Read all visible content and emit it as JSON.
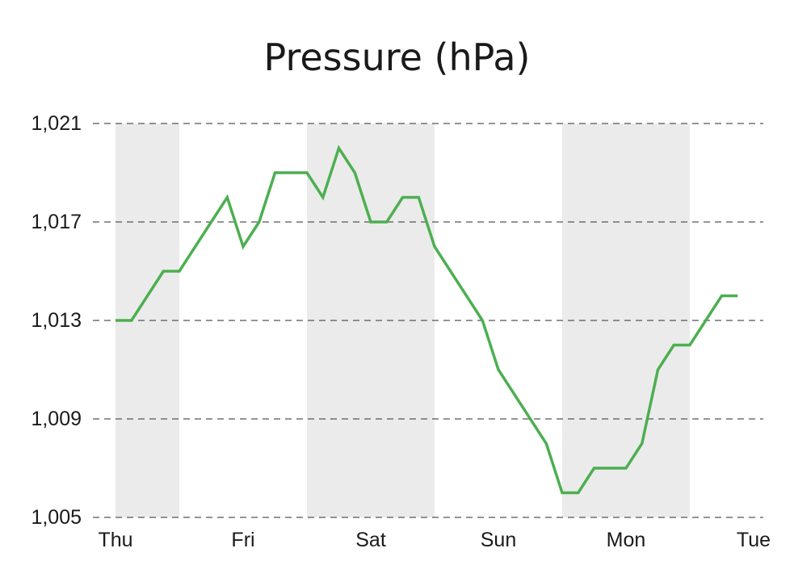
{
  "chart_data": {
    "type": "line",
    "title": "Pressure (hPa)",
    "xlabel": "",
    "ylabel": "",
    "x_tick_labels": [
      "Thu",
      "Fri",
      "Sat",
      "Sun",
      "Mon",
      "Tue"
    ],
    "y_tick_labels": [
      "1,021",
      "1,017",
      "1,013",
      "1,009",
      "1,005"
    ],
    "y_ticks": [
      1021,
      1017,
      1013,
      1009,
      1005
    ],
    "ylim": [
      1005,
      1021
    ],
    "xlim_days": [
      0,
      5
    ],
    "grid": "horizontal dashed",
    "shaded_bands": [
      {
        "from_day": 0,
        "to_day": 0.5
      },
      {
        "from_day": 1.5,
        "to_day": 2.5
      },
      {
        "from_day": 3.5,
        "to_day": 4.5
      }
    ],
    "line_color": "#4caf50",
    "band_color": "#ebebeb",
    "series": [
      {
        "name": "",
        "points": [
          {
            "day": 0.0,
            "value": 1013
          },
          {
            "day": 0.125,
            "value": 1013
          },
          {
            "day": 0.375,
            "value": 1015
          },
          {
            "day": 0.5,
            "value": 1015
          },
          {
            "day": 0.875,
            "value": 1018
          },
          {
            "day": 1.0,
            "value": 1016
          },
          {
            "day": 1.125,
            "value": 1017
          },
          {
            "day": 1.25,
            "value": 1019
          },
          {
            "day": 1.5,
            "value": 1019
          },
          {
            "day": 1.625,
            "value": 1018
          },
          {
            "day": 1.75,
            "value": 1020
          },
          {
            "day": 1.875,
            "value": 1019
          },
          {
            "day": 2.0,
            "value": 1017
          },
          {
            "day": 2.125,
            "value": 1017
          },
          {
            "day": 2.25,
            "value": 1018
          },
          {
            "day": 2.375,
            "value": 1018
          },
          {
            "day": 2.5,
            "value": 1016
          },
          {
            "day": 2.875,
            "value": 1013
          },
          {
            "day": 3.0,
            "value": 1011
          },
          {
            "day": 3.375,
            "value": 1008
          },
          {
            "day": 3.5,
            "value": 1006
          },
          {
            "day": 3.625,
            "value": 1006
          },
          {
            "day": 3.75,
            "value": 1007
          },
          {
            "day": 4.0,
            "value": 1007
          },
          {
            "day": 4.125,
            "value": 1008
          },
          {
            "day": 4.25,
            "value": 1011
          },
          {
            "day": 4.375,
            "value": 1012
          },
          {
            "day": 4.5,
            "value": 1012
          },
          {
            "day": 4.75,
            "value": 1014
          },
          {
            "day": 4.875,
            "value": 1014
          }
        ]
      }
    ]
  }
}
